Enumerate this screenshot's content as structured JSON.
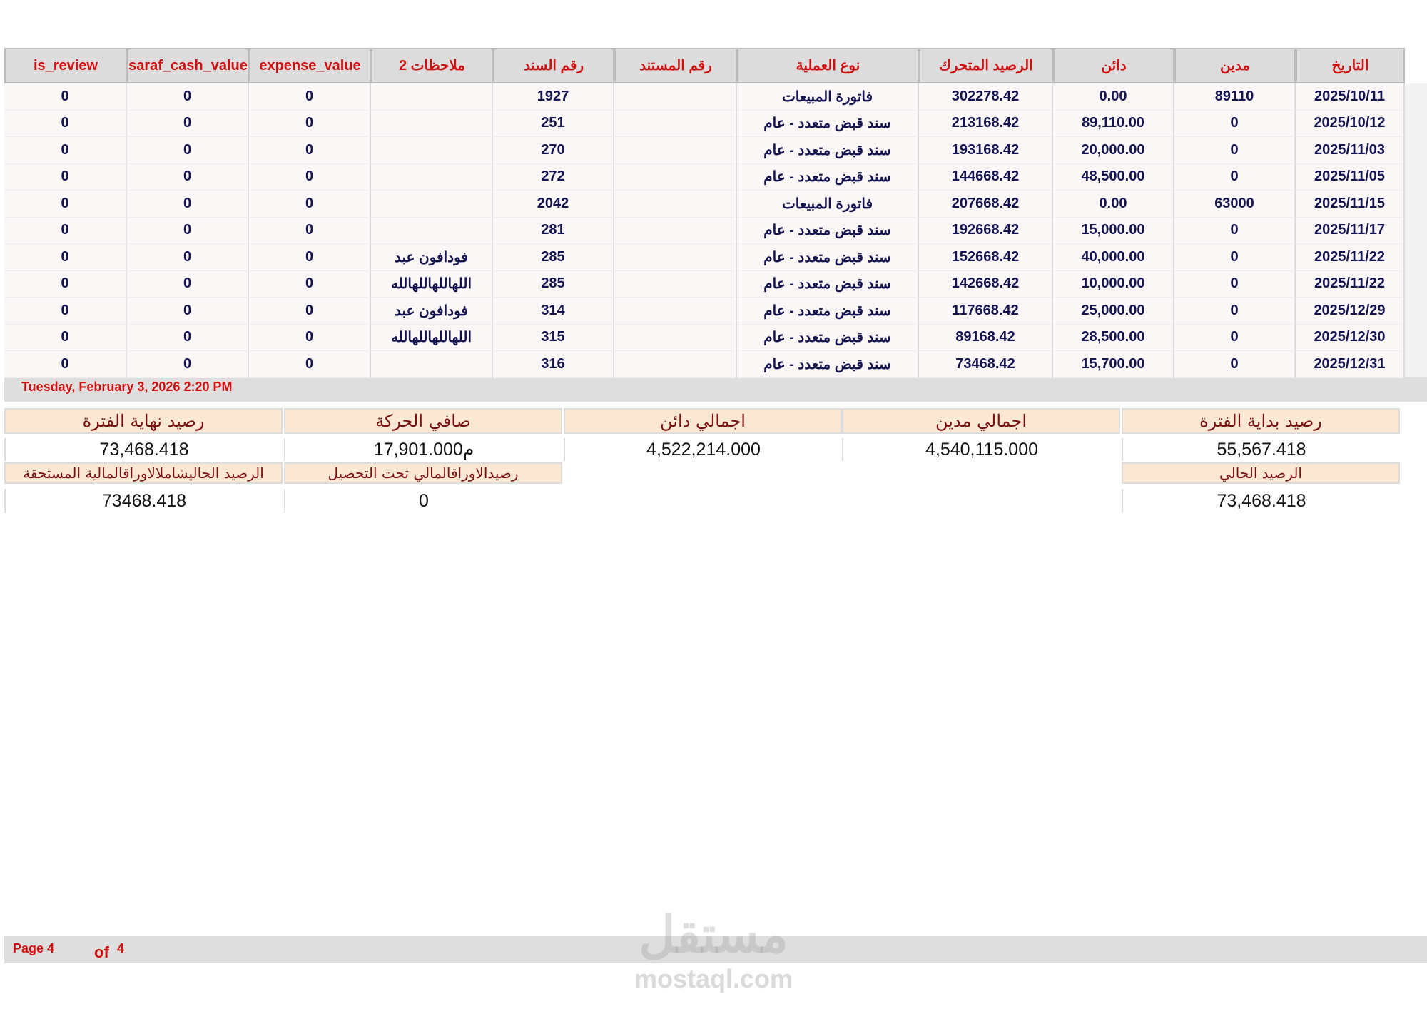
{
  "table": {
    "columns": [
      "التاريخ",
      "مدين",
      "دائن",
      "الرصيد المتحرك",
      "نوع العملية",
      "رقم المستند",
      "رقم السند",
      "ملاحظات 2",
      "expense_value",
      "saraf_cash_value",
      "is_review"
    ],
    "rows": [
      [
        "2025/10/11",
        "89110",
        "0.00",
        "302278.42",
        "فاتورة المبيعات",
        "",
        "1927",
        "",
        "0",
        "0",
        "0"
      ],
      [
        "2025/10/12",
        "0",
        "89,110.00",
        "213168.42",
        "سند قبض متعدد - عام",
        "",
        "251",
        "",
        "0",
        "0",
        "0"
      ],
      [
        "2025/11/03",
        "0",
        "20,000.00",
        "193168.42",
        "سند قبض متعدد - عام",
        "",
        "270",
        "",
        "0",
        "0",
        "0"
      ],
      [
        "2025/11/05",
        "0",
        "48,500.00",
        "144668.42",
        "سند قبض متعدد - عام",
        "",
        "272",
        "",
        "0",
        "0",
        "0"
      ],
      [
        "2025/11/15",
        "63000",
        "0.00",
        "207668.42",
        "فاتورة المبيعات",
        "",
        "2042",
        "",
        "0",
        "0",
        "0"
      ],
      [
        "2025/11/17",
        "0",
        "15,000.00",
        "192668.42",
        "سند قبض متعدد - عام",
        "",
        "281",
        "",
        "0",
        "0",
        "0"
      ],
      [
        "2025/11/22",
        "0",
        "40,000.00",
        "152668.42",
        "سند قبض متعدد - عام",
        "",
        "285",
        "فودافون عبد",
        "0",
        "0",
        "0"
      ],
      [
        "2025/11/22",
        "0",
        "10,000.00",
        "142668.42",
        "سند قبض متعدد - عام",
        "",
        "285",
        "اللهاللهاللهالله",
        "0",
        "0",
        "0"
      ],
      [
        "2025/12/29",
        "0",
        "25,000.00",
        "117668.42",
        "سند قبض متعدد - عام",
        "",
        "314",
        "فودافون عبد",
        "0",
        "0",
        "0"
      ],
      [
        "2025/12/30",
        "0",
        "28,500.00",
        "89168.42",
        "سند قبض متعدد - عام",
        "",
        "315",
        "اللهاللهاللهالله",
        "0",
        "0",
        "0"
      ],
      [
        "2025/12/31",
        "0",
        "15,700.00",
        "73468.42",
        "سند قبض متعدد - عام",
        "",
        "316",
        "",
        "0",
        "0",
        "0"
      ]
    ]
  },
  "printed_at": "Tuesday, February 3, 2026 2:20 PM",
  "summary": {
    "items": [
      {
        "label": "رصيد بداية الفترة",
        "value": "55,567.418"
      },
      {
        "label": "اجمالي مدين",
        "value": "4,540,115.000"
      },
      {
        "label": "اجمالي دائن",
        "value": "4,522,214.000"
      },
      {
        "label": "صافي الحركة",
        "value": "17,901.000م"
      },
      {
        "label": "رصيد نهاية الفترة",
        "value": "73,468.418"
      }
    ],
    "extra": [
      {
        "label": "الرصيد الحالي",
        "value": "73,468.418"
      },
      {
        "label": "رصيدالاوراقالمالي تحت التحصيل",
        "value": "0"
      },
      {
        "label": "الرصيد الحاليشاملالاوراقالمالية المستحقة",
        "value": "73468.418"
      }
    ]
  },
  "footer": {
    "page": "Page 4",
    "of": "of",
    "total": "4"
  },
  "watermark": {
    "logo": "مستقل",
    "site": "mostaql.com"
  }
}
